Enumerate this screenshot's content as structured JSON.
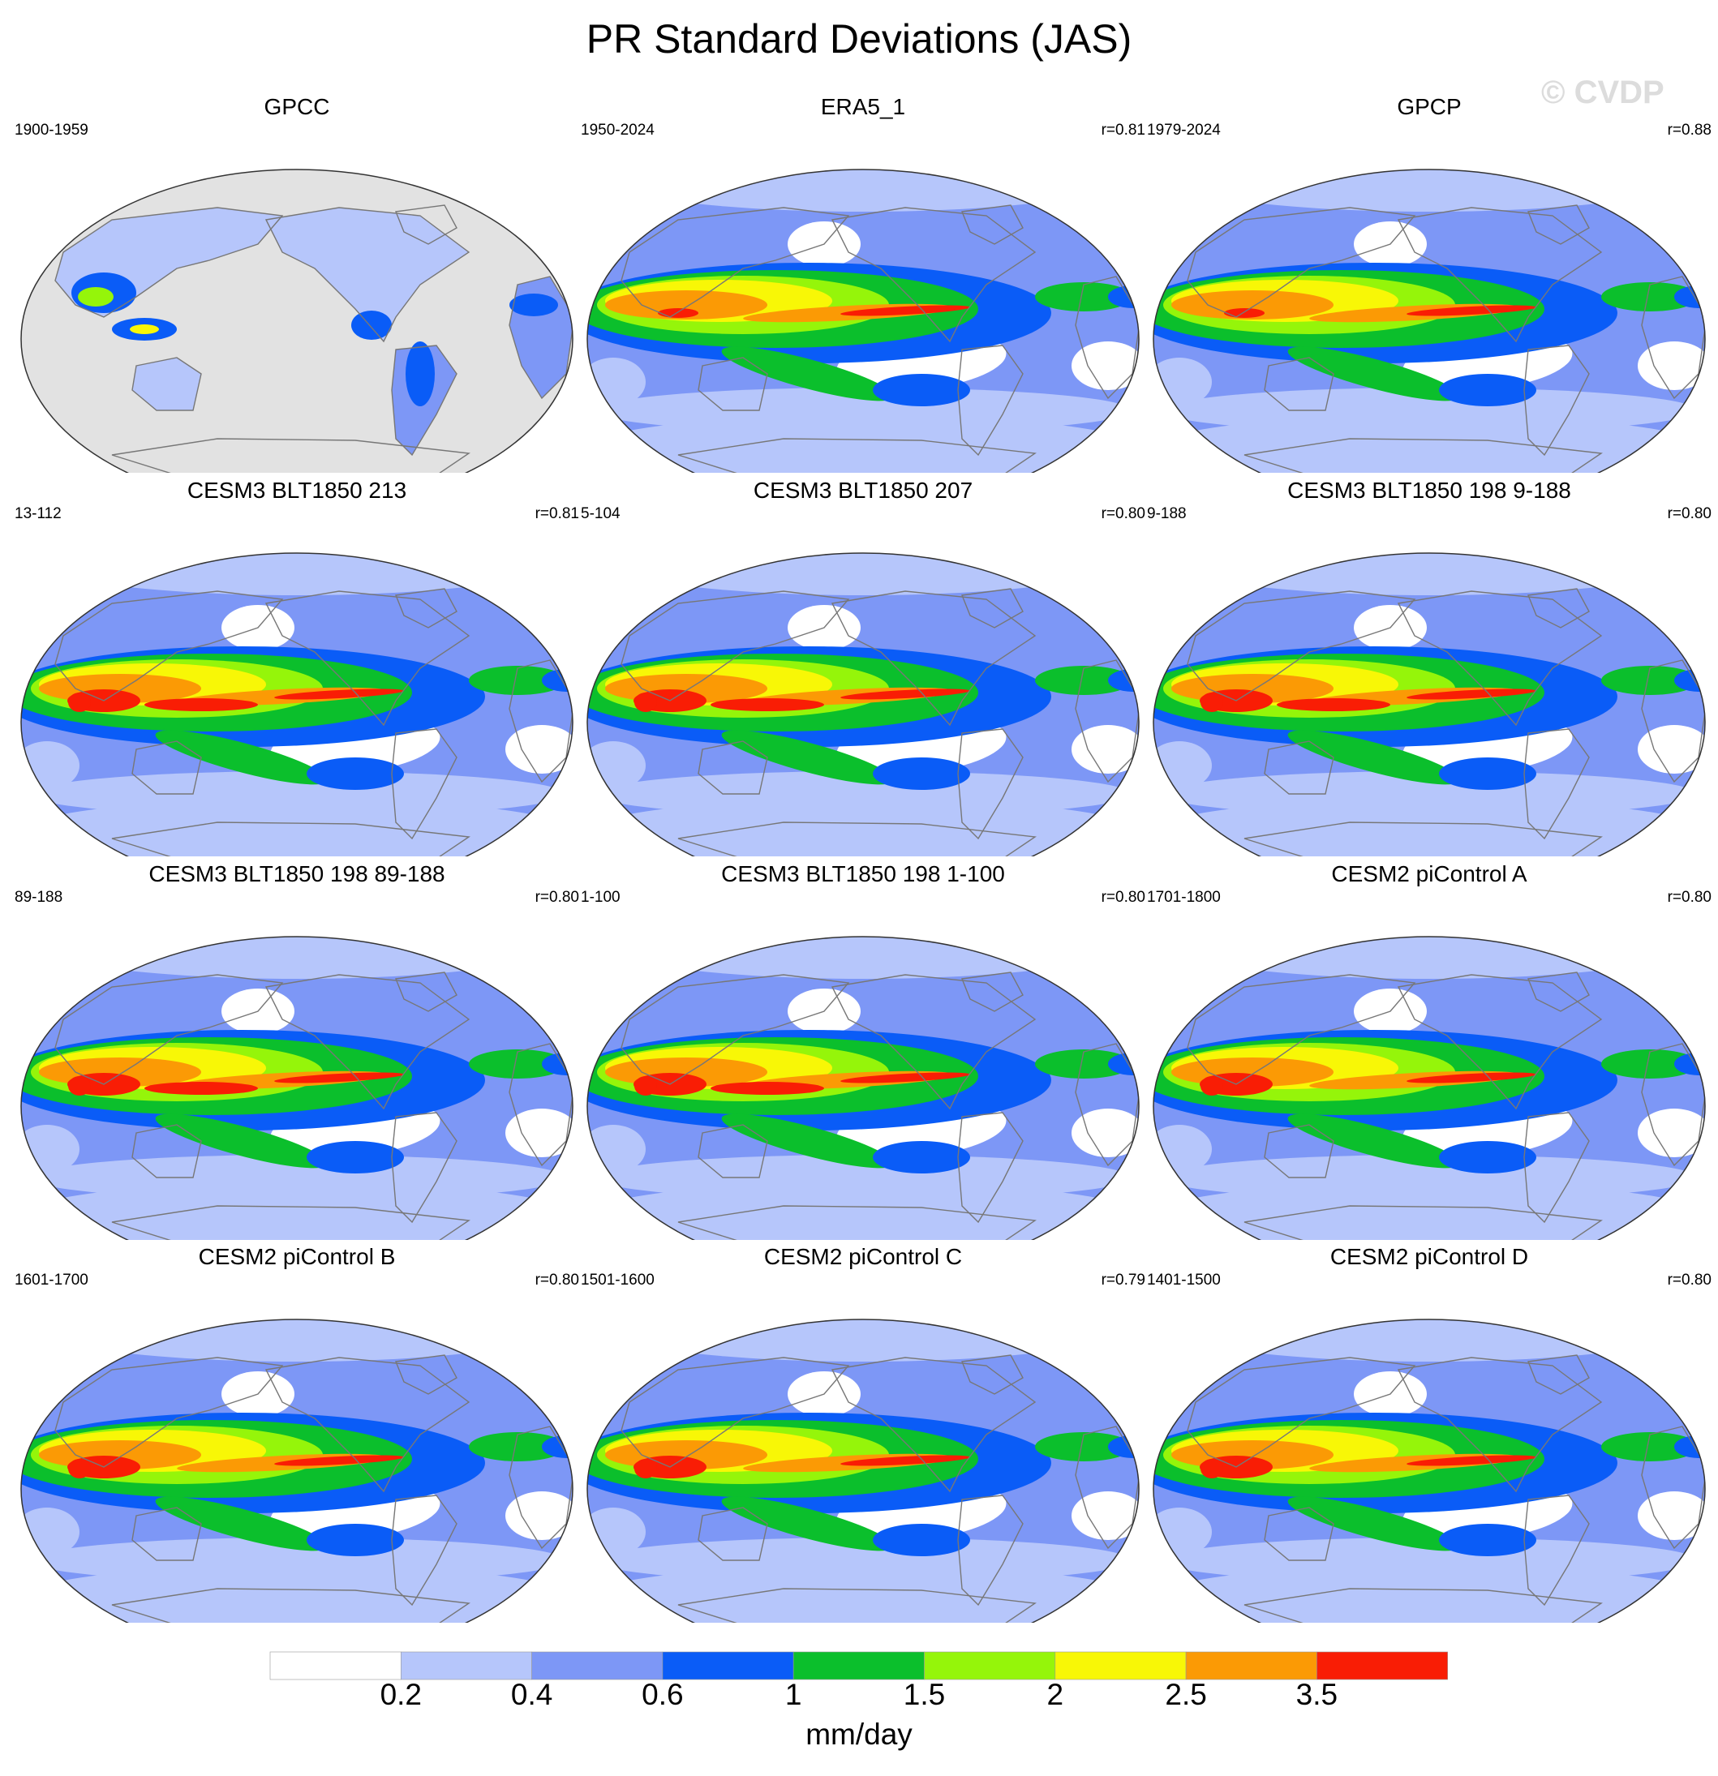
{
  "title": "PR Standard Deviations (JAS)",
  "watermark": "© CVDP",
  "colors": {
    "levels": [
      "#ffffff",
      "#b6c6fb",
      "#7d97f6",
      "#0a5cf7",
      "#0bbf2c",
      "#95f50a",
      "#f8f706",
      "#fb9a05",
      "#f91d05"
    ],
    "land_mask": "#e2e2e2",
    "coast": "#777777"
  },
  "chart_data": [
    {
      "type": "heatmap",
      "title": "GPCC",
      "period": "1900-1959",
      "r": ""
    },
    {
      "type": "heatmap",
      "title": "ERA5_1",
      "period": "1950-2024",
      "r": "r=0.81"
    },
    {
      "type": "heatmap",
      "title": "GPCP",
      "period": "1979-2024",
      "r": "r=0.88"
    },
    {
      "type": "heatmap",
      "title": "CESM3 BLT1850 213",
      "period": "13-112",
      "r": "r=0.81"
    },
    {
      "type": "heatmap",
      "title": "CESM3 BLT1850 207",
      "period": "5-104",
      "r": "r=0.80"
    },
    {
      "type": "heatmap",
      "title": "CESM3 BLT1850 198 9-188",
      "period": "9-188",
      "r": "r=0.80"
    },
    {
      "type": "heatmap",
      "title": "CESM3 BLT1850 198 89-188",
      "period": "89-188",
      "r": "r=0.80"
    },
    {
      "type": "heatmap",
      "title": "CESM3 BLT1850 198 1-100",
      "period": "1-100",
      "r": "r=0.80"
    },
    {
      "type": "heatmap",
      "title": "CESM2 piControl A",
      "period": "1701-1800",
      "r": "r=0.80"
    },
    {
      "type": "heatmap",
      "title": "CESM2 piControl B",
      "period": "1601-1700",
      "r": "r=0.80"
    },
    {
      "type": "heatmap",
      "title": "CESM2 piControl C",
      "period": "1501-1600",
      "r": "r=0.79"
    },
    {
      "type": "heatmap",
      "title": "CESM2 piControl D",
      "period": "1401-1500",
      "r": "r=0.80"
    }
  ],
  "colorbar": {
    "tick_labels": [
      "0.2",
      "0.4",
      "0.6",
      "1",
      "1.5",
      "2",
      "2.5",
      "3.5"
    ],
    "units": "mm/day"
  }
}
